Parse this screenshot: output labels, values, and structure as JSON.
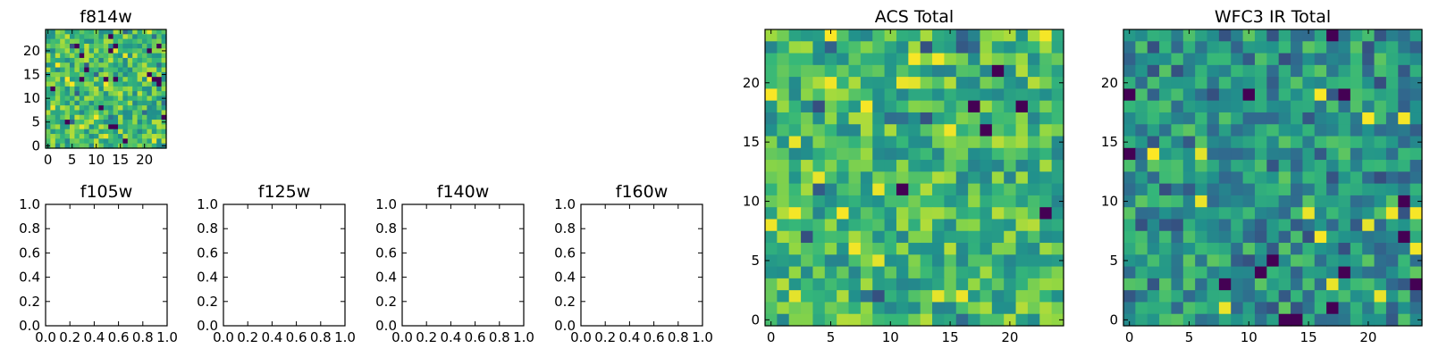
{
  "figure": {
    "colormap": [
      "#440154",
      "#31688e",
      "#21918c",
      "#35b779",
      "#90d743",
      "#fde725"
    ]
  },
  "chart_data": [
    {
      "id": "f814w",
      "type": "heatmap",
      "title": "f814w",
      "image": true,
      "grid_size": 25,
      "seed": 11,
      "stretch": 0.62,
      "xticks": [
        0,
        5,
        10,
        15,
        20
      ],
      "yticks": [
        0,
        5,
        10,
        15,
        20
      ],
      "xlim": [
        -0.5,
        24.5
      ],
      "ylim": [
        -0.5,
        24.5
      ]
    },
    {
      "id": "f105w",
      "type": "heatmap",
      "title": "f105w",
      "image": false,
      "xticks": [
        "0.0",
        "0.2",
        "0.4",
        "0.6",
        "0.8",
        "1.0"
      ],
      "yticks": [
        "0.0",
        "0.2",
        "0.4",
        "0.6",
        "0.8",
        "1.0"
      ],
      "xlim": [
        0,
        1
      ],
      "ylim": [
        0,
        1
      ]
    },
    {
      "id": "f125w",
      "type": "heatmap",
      "title": "f125w",
      "image": false,
      "xticks": [
        "0.0",
        "0.2",
        "0.4",
        "0.6",
        "0.8",
        "1.0"
      ],
      "yticks": [
        "0.0",
        "0.2",
        "0.4",
        "0.6",
        "0.8",
        "1.0"
      ],
      "xlim": [
        0,
        1
      ],
      "ylim": [
        0,
        1
      ]
    },
    {
      "id": "f140w",
      "type": "heatmap",
      "title": "f140w",
      "image": false,
      "xticks": [
        "0.0",
        "0.2",
        "0.4",
        "0.6",
        "0.8",
        "1.0"
      ],
      "yticks": [
        "0.0",
        "0.2",
        "0.4",
        "0.6",
        "0.8",
        "1.0"
      ],
      "xlim": [
        0,
        1
      ],
      "ylim": [
        0,
        1
      ]
    },
    {
      "id": "f160w",
      "type": "heatmap",
      "title": "f160w",
      "image": false,
      "xticks": [
        "0.0",
        "0.2",
        "0.4",
        "0.6",
        "0.8",
        "1.0"
      ],
      "yticks": [
        "0.0",
        "0.2",
        "0.4",
        "0.6",
        "0.8",
        "1.0"
      ],
      "xlim": [
        0,
        1
      ],
      "ylim": [
        0,
        1
      ]
    },
    {
      "id": "acs",
      "type": "heatmap",
      "title": "ACS Total",
      "image": true,
      "grid_size": 25,
      "seed": 29,
      "stretch": 0.6,
      "xticks": [
        0,
        5,
        10,
        15,
        20
      ],
      "yticks": [
        0,
        5,
        10,
        15,
        20
      ],
      "xlim": [
        -0.5,
        24.5
      ],
      "ylim": [
        -0.5,
        24.5
      ]
    },
    {
      "id": "wfc3",
      "type": "heatmap",
      "title": "WFC3 IR Total",
      "image": true,
      "grid_size": 25,
      "seed": 47,
      "stretch": 0.42,
      "xticks": [
        0,
        5,
        10,
        15,
        20
      ],
      "yticks": [
        0,
        5,
        10,
        15,
        20
      ],
      "xlim": [
        -0.5,
        24.5
      ],
      "ylim": [
        -0.5,
        24.5
      ]
    }
  ]
}
